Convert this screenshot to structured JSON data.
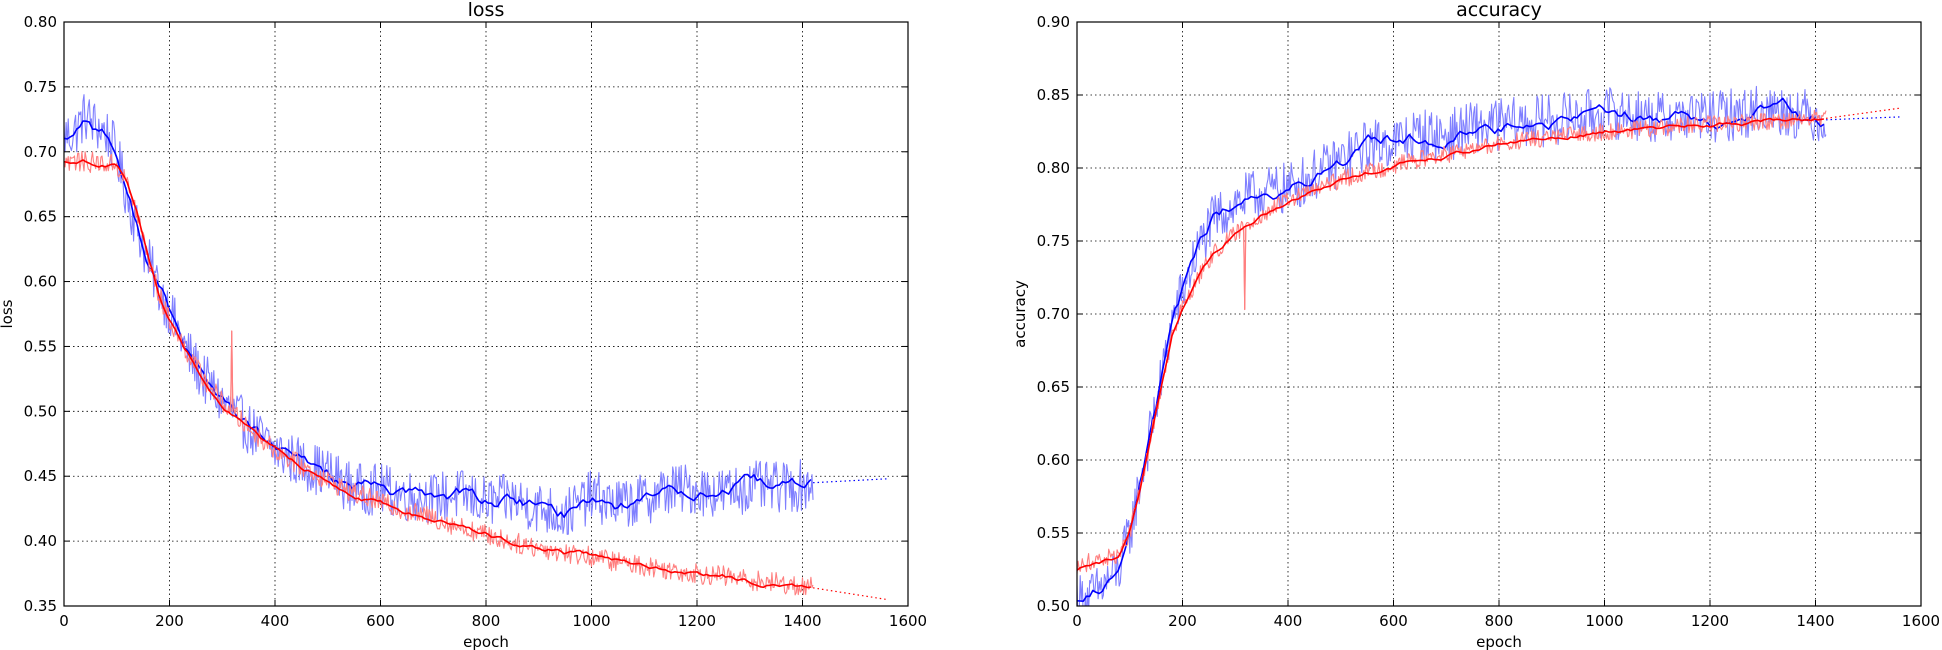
{
  "chart_data": [
    {
      "type": "line",
      "title": "loss",
      "xlabel": "epoch",
      "ylabel": "loss",
      "xlim": [
        0,
        1600
      ],
      "ylim": [
        0.35,
        0.8
      ],
      "xticks": [
        0,
        200,
        400,
        600,
        800,
        1000,
        1200,
        1400,
        1600
      ],
      "yticks": [
        0.35,
        0.4,
        0.45,
        0.5,
        0.55,
        0.6,
        0.65,
        0.7,
        0.75,
        0.8
      ],
      "grid": true,
      "colors": {
        "raw_blue": "#7f7fff",
        "smooth_blue": "#0000ff",
        "raw_red": "#ff7f7f",
        "smooth_red": "#ff0000"
      },
      "series": [
        {
          "color": "#0000ff",
          "x": [
            0,
            20,
            40,
            60,
            80,
            100,
            120,
            140,
            160,
            180,
            200,
            230,
            260,
            300,
            350,
            400,
            450,
            500,
            550,
            600,
            650,
            700,
            750,
            800,
            850,
            900,
            950,
            1000,
            1050,
            1100,
            1150,
            1200,
            1250,
            1300,
            1350,
            1400,
            1420
          ],
          "y": [
            0.712,
            0.715,
            0.728,
            0.72,
            0.715,
            0.698,
            0.665,
            0.64,
            0.615,
            0.595,
            0.578,
            0.548,
            0.528,
            0.507,
            0.487,
            0.47,
            0.46,
            0.452,
            0.44,
            0.44,
            0.435,
            0.433,
            0.436,
            0.43,
            0.432,
            0.426,
            0.42,
            0.435,
            0.428,
            0.432,
            0.44,
            0.44,
            0.437,
            0.442,
            0.441,
            0.443,
            0.445
          ],
          "noise": 0.02
        },
        {
          "color": "#ff0000",
          "x": [
            0,
            50,
            100,
            120,
            140,
            160,
            180,
            200,
            230,
            260,
            300,
            350,
            400,
            450,
            500,
            550,
            600,
            650,
            700,
            750,
            800,
            850,
            900,
            950,
            1000,
            1050,
            1100,
            1150,
            1200,
            1250,
            1300,
            1350,
            1400,
            1420
          ],
          "y": [
            0.693,
            0.692,
            0.69,
            0.675,
            0.65,
            0.617,
            0.59,
            0.57,
            0.548,
            0.528,
            0.507,
            0.487,
            0.47,
            0.458,
            0.447,
            0.437,
            0.43,
            0.423,
            0.418,
            0.411,
            0.405,
            0.399,
            0.395,
            0.391,
            0.388,
            0.384,
            0.381,
            0.378,
            0.375,
            0.373,
            0.37,
            0.368,
            0.365,
            0.364
          ],
          "noise": 0.008,
          "spike": {
            "x": 318,
            "y": 0.562
          }
        }
      ],
      "dotted_extensions": [
        {
          "color": "#0000ff",
          "x": [
            1420,
            1560
          ],
          "y": [
            0.445,
            0.448
          ]
        },
        {
          "color": "#ff0000",
          "x": [
            1420,
            1560
          ],
          "y": [
            0.364,
            0.355
          ]
        }
      ]
    },
    {
      "type": "line",
      "title": "accuracy",
      "xlabel": "epoch",
      "ylabel": "accuracy",
      "xlim": [
        0,
        1600
      ],
      "ylim": [
        0.5,
        0.9
      ],
      "xticks": [
        0,
        200,
        400,
        600,
        800,
        1000,
        1200,
        1400,
        1600
      ],
      "yticks": [
        0.5,
        0.55,
        0.6,
        0.65,
        0.7,
        0.75,
        0.8,
        0.85,
        0.9
      ],
      "grid": true,
      "colors": {
        "raw_blue": "#7f7fff",
        "smooth_blue": "#0000ff",
        "raw_red": "#ff7f7f",
        "smooth_red": "#ff0000"
      },
      "series": [
        {
          "color": "#0000ff",
          "x": [
            0,
            20,
            40,
            60,
            80,
            100,
            120,
            140,
            160,
            180,
            200,
            230,
            260,
            300,
            350,
            400,
            450,
            500,
            550,
            600,
            650,
            700,
            750,
            800,
            850,
            900,
            950,
            1000,
            1050,
            1100,
            1150,
            1200,
            1250,
            1300,
            1350,
            1400,
            1420
          ],
          "y": [
            0.505,
            0.505,
            0.51,
            0.518,
            0.525,
            0.55,
            0.585,
            0.62,
            0.655,
            0.695,
            0.715,
            0.745,
            0.765,
            0.776,
            0.783,
            0.786,
            0.795,
            0.805,
            0.815,
            0.818,
            0.823,
            0.822,
            0.828,
            0.83,
            0.831,
            0.833,
            0.835,
            0.838,
            0.837,
            0.834,
            0.836,
            0.835,
            0.837,
            0.84,
            0.839,
            0.835,
            0.833
          ],
          "noise": 0.018
        },
        {
          "color": "#ff0000",
          "x": [
            0,
            20,
            50,
            80,
            100,
            120,
            140,
            160,
            180,
            200,
            230,
            260,
            300,
            350,
            400,
            450,
            500,
            550,
            600,
            650,
            700,
            750,
            800,
            850,
            900,
            950,
            1000,
            1050,
            1100,
            1150,
            1200,
            1250,
            1300,
            1350,
            1400,
            1420
          ],
          "y": [
            0.525,
            0.53,
            0.532,
            0.535,
            0.55,
            0.58,
            0.615,
            0.65,
            0.685,
            0.705,
            0.725,
            0.742,
            0.755,
            0.768,
            0.778,
            0.785,
            0.792,
            0.797,
            0.802,
            0.806,
            0.809,
            0.813,
            0.816,
            0.819,
            0.821,
            0.823,
            0.825,
            0.826,
            0.827,
            0.829,
            0.83,
            0.831,
            0.832,
            0.833,
            0.834,
            0.834
          ],
          "noise": 0.006,
          "spike": {
            "x": 318,
            "y": 0.703
          }
        }
      ],
      "dotted_extensions": [
        {
          "color": "#0000ff",
          "x": [
            1420,
            1560
          ],
          "y": [
            0.833,
            0.835
          ]
        },
        {
          "color": "#ff0000",
          "x": [
            1420,
            1560
          ],
          "y": [
            0.834,
            0.841
          ]
        }
      ]
    }
  ]
}
